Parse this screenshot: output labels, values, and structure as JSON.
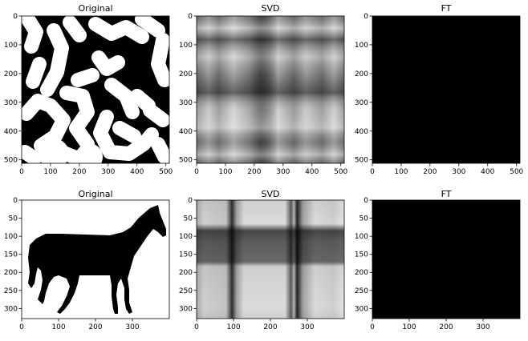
{
  "chart_data": [
    {
      "type": "image",
      "title": "Original",
      "image_description": "Binary black-and-white image of random white blobs on black",
      "xlim": [
        0,
        512
      ],
      "ylim": [
        512,
        0
      ],
      "xticks": [
        "0",
        "100",
        "200",
        "300",
        "400",
        "500"
      ],
      "yticks": [
        "0",
        "100",
        "200",
        "300",
        "400",
        "500"
      ]
    },
    {
      "type": "image",
      "title": "SVD",
      "image_description": "Grayscale checkered/plaid pattern reconstructed from SVD of the blob image",
      "xlim": [
        0,
        512
      ],
      "ylim": [
        512,
        0
      ],
      "xticks": [
        "0",
        "100",
        "200",
        "300",
        "400",
        "500"
      ],
      "yticks": [
        "0",
        "100",
        "200",
        "300",
        "400",
        "500"
      ]
    },
    {
      "type": "image",
      "title": "FT",
      "image_description": "Entirely black image",
      "xlim": [
        0,
        512
      ],
      "ylim": [
        512,
        0
      ],
      "xticks": [
        "0",
        "100",
        "200",
        "300",
        "400",
        "500"
      ],
      "yticks": [
        "0",
        "100",
        "200",
        "300",
        "400",
        "500"
      ]
    },
    {
      "type": "image",
      "title": "Original",
      "image_description": "Black silhouette of a horse on white background",
      "xlim": [
        0,
        400
      ],
      "ylim": [
        328,
        0
      ],
      "xticks": [
        "0",
        "100",
        "200",
        "300"
      ],
      "yticks": [
        "0",
        "50",
        "100",
        "150",
        "200",
        "250",
        "300"
      ]
    },
    {
      "type": "image",
      "title": "SVD",
      "image_description": "Grayscale plaid pattern with dark horizontal band and dark vertical stripes reconstructed from SVD of the horse image",
      "xlim": [
        0,
        400
      ],
      "ylim": [
        328,
        0
      ],
      "xticks": [
        "0",
        "100",
        "200",
        "300"
      ],
      "yticks": [
        "0",
        "50",
        "100",
        "150",
        "200",
        "250",
        "300"
      ]
    },
    {
      "type": "image",
      "title": "FT",
      "image_description": "Entirely black image",
      "xlim": [
        0,
        400
      ],
      "ylim": [
        328,
        0
      ],
      "xticks": [
        "0",
        "100",
        "200",
        "300"
      ],
      "yticks": [
        "0",
        "50",
        "100",
        "150",
        "200",
        "250",
        "300"
      ]
    }
  ]
}
